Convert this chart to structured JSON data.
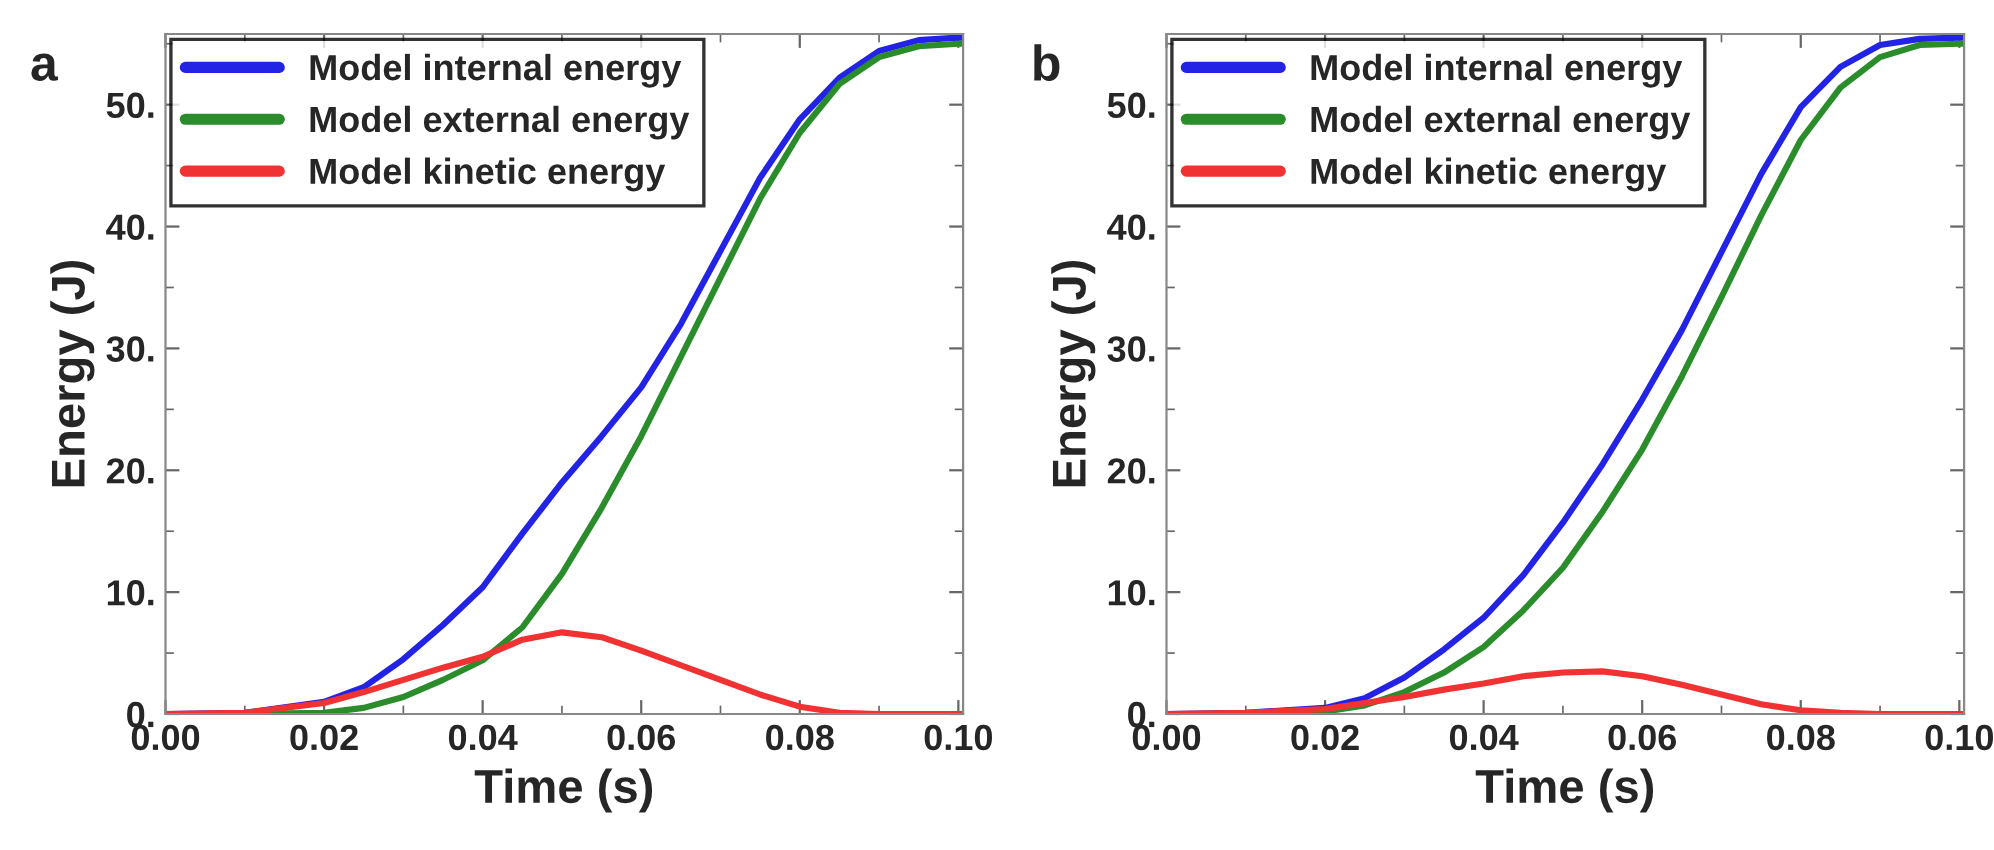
{
  "chart_data": [
    {
      "type": "line",
      "title": "a",
      "xlabel": "Time (s)",
      "ylabel": "Energy (J)",
      "xlim": [
        0,
        0.1006
      ],
      "ylim": [
        0,
        55.8
      ],
      "xticks": [
        {
          "value": 0,
          "label": "0.00"
        },
        {
          "value": 0.02,
          "label": "0.02"
        },
        {
          "value": 0.04,
          "label": "0.04"
        },
        {
          "value": 0.06,
          "label": "0.06"
        },
        {
          "value": 0.08,
          "label": "0.08"
        },
        {
          "value": 0.1,
          "label": "0.10"
        }
      ],
      "yticks": [
        {
          "value": 0,
          "label": "0."
        },
        {
          "value": 10,
          "label": "10."
        },
        {
          "value": 20,
          "label": "20."
        },
        {
          "value": 30,
          "label": "30."
        },
        {
          "value": 40,
          "label": "40."
        },
        {
          "value": 50,
          "label": "50."
        }
      ],
      "x": [
        0,
        0.01,
        0.02,
        0.025,
        0.03,
        0.035,
        0.04,
        0.045,
        0.05,
        0.055,
        0.06,
        0.065,
        0.07,
        0.075,
        0.08,
        0.085,
        0.09,
        0.095,
        0.1,
        0.1006
      ],
      "legend": "top left",
      "grid": false,
      "line_style": "solid",
      "marker": "none",
      "series": [
        {
          "name": "Model internal energy",
          "color": "#2323e6",
          "values": [
            0,
            0.1,
            1.0,
            2.2,
            4.5,
            7.3,
            10.4,
            14.8,
            19.0,
            22.8,
            26.8,
            32.0,
            38.0,
            44.0,
            48.8,
            52.2,
            54.4,
            55.3,
            55.5,
            55.5
          ]
        },
        {
          "name": "Model external energy",
          "color": "#2a8c2a",
          "values": [
            0,
            0,
            0.1,
            0.5,
            1.4,
            2.8,
            4.4,
            7.1,
            11.5,
            16.9,
            22.8,
            29.3,
            35.8,
            42.3,
            47.7,
            51.7,
            53.9,
            54.8,
            55.0,
            55.0
          ]
        },
        {
          "name": "Model kinetic energy",
          "color": "#f03232",
          "values": [
            0,
            0.1,
            0.9,
            1.8,
            2.8,
            3.8,
            4.7,
            6.1,
            6.7,
            6.3,
            5.2,
            4.0,
            2.8,
            1.6,
            0.6,
            0.1,
            0,
            0,
            0,
            0
          ]
        }
      ]
    },
    {
      "type": "line",
      "title": "b",
      "xlabel": "Time (s)",
      "ylabel": "Energy (J)",
      "xlim": [
        0,
        0.1006
      ],
      "ylim": [
        0,
        55.8
      ],
      "xticks": [
        {
          "value": 0,
          "label": "0.00"
        },
        {
          "value": 0.02,
          "label": "0.02"
        },
        {
          "value": 0.04,
          "label": "0.04"
        },
        {
          "value": 0.06,
          "label": "0.06"
        },
        {
          "value": 0.08,
          "label": "0.08"
        },
        {
          "value": 0.1,
          "label": "0.10"
        }
      ],
      "yticks": [
        {
          "value": 0,
          "label": "0."
        },
        {
          "value": 10,
          "label": "10."
        },
        {
          "value": 20,
          "label": "20."
        },
        {
          "value": 30,
          "label": "30."
        },
        {
          "value": 40,
          "label": "40."
        },
        {
          "value": 50,
          "label": "50."
        }
      ],
      "x": [
        0,
        0.01,
        0.02,
        0.025,
        0.03,
        0.035,
        0.04,
        0.045,
        0.05,
        0.055,
        0.06,
        0.065,
        0.07,
        0.075,
        0.08,
        0.085,
        0.09,
        0.095,
        0.1,
        0.1006
      ],
      "legend": "top left",
      "grid": false,
      "line_style": "solid",
      "marker": "none",
      "series": [
        {
          "name": "Model internal energy",
          "color": "#2323e6",
          "values": [
            0,
            0.1,
            0.5,
            1.3,
            3.0,
            5.3,
            7.9,
            11.4,
            15.7,
            20.5,
            25.8,
            31.5,
            37.9,
            44.3,
            49.8,
            53.1,
            54.9,
            55.4,
            55.5,
            55.5
          ]
        },
        {
          "name": "Model external energy",
          "color": "#2a8c2a",
          "values": [
            0,
            0,
            0.2,
            0.7,
            1.8,
            3.4,
            5.5,
            8.5,
            12.0,
            16.6,
            21.7,
            27.7,
            34.2,
            40.9,
            47.1,
            51.4,
            53.9,
            54.9,
            55.0,
            55.0
          ]
        },
        {
          "name": "Model kinetic energy",
          "color": "#f03232",
          "values": [
            0,
            0.1,
            0.4,
            0.9,
            1.4,
            2.0,
            2.5,
            3.1,
            3.4,
            3.5,
            3.1,
            2.4,
            1.6,
            0.8,
            0.3,
            0.1,
            0,
            0,
            0,
            0
          ]
        }
      ]
    }
  ]
}
